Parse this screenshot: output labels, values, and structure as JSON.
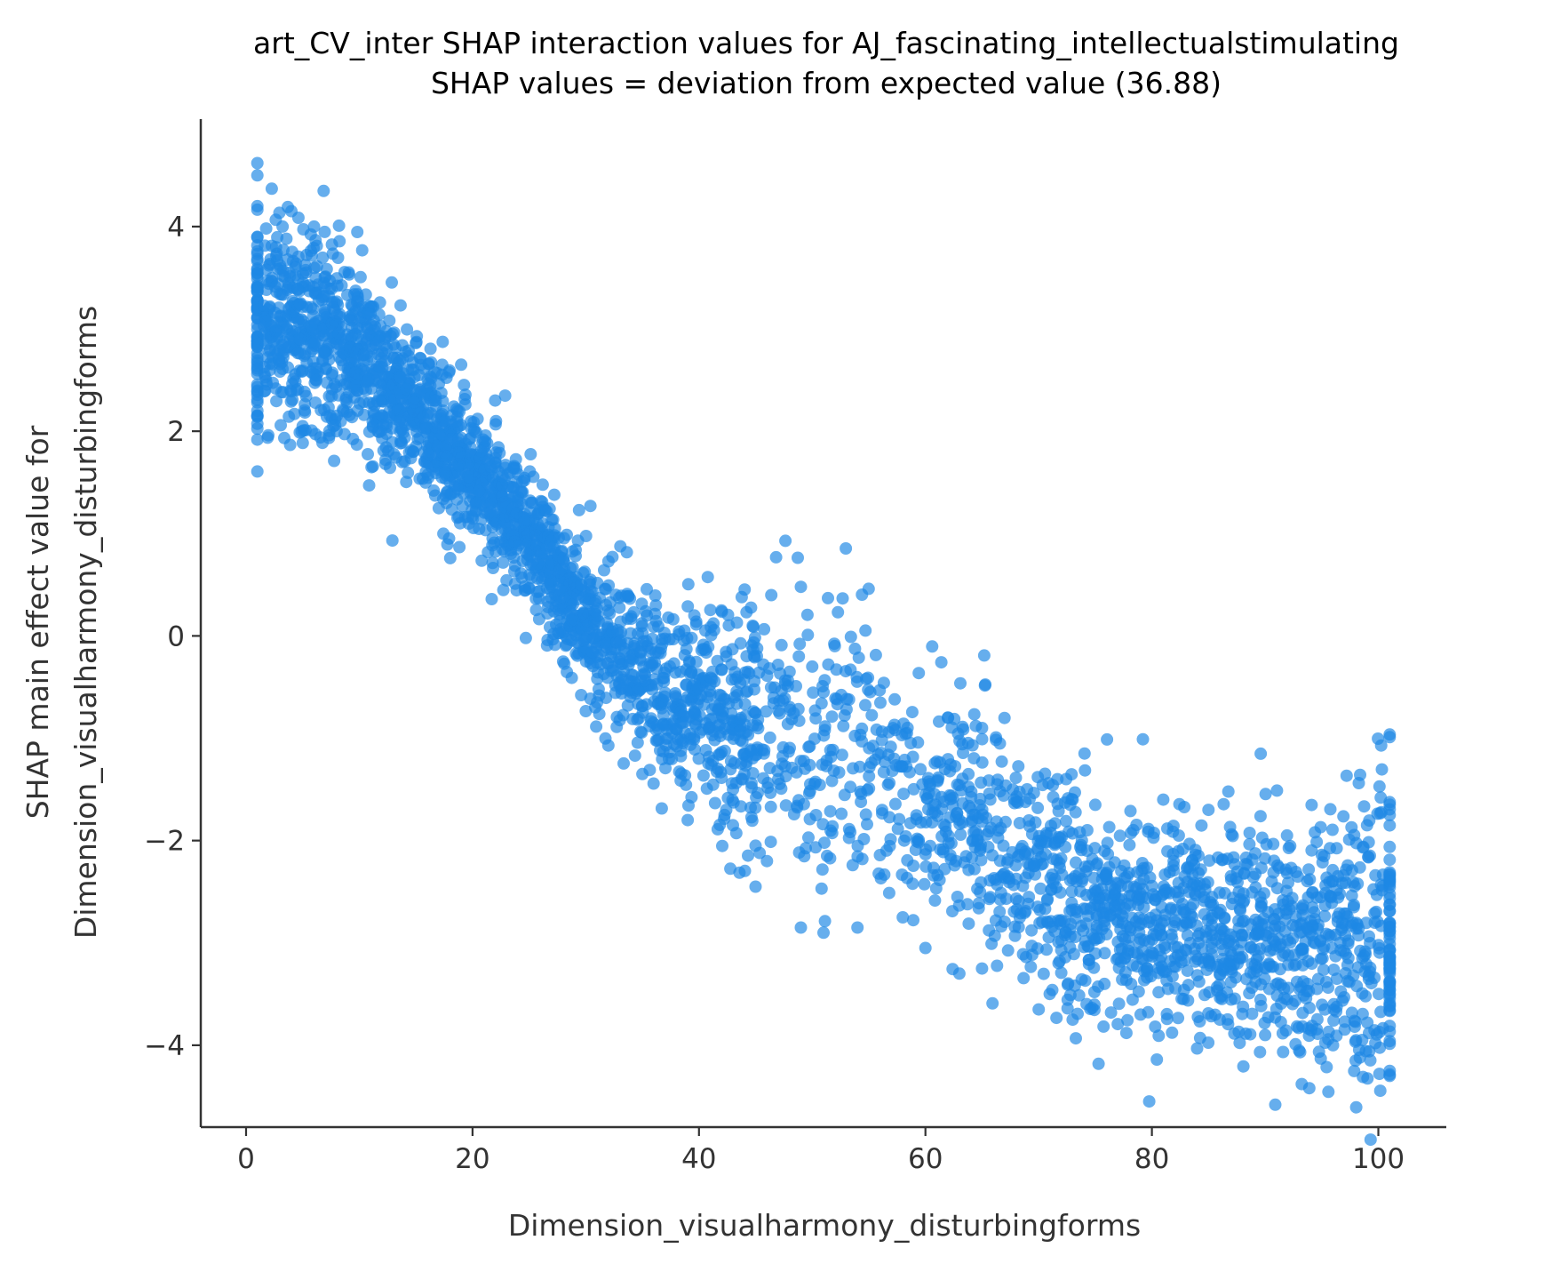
{
  "chart_data": {
    "type": "scatter",
    "title": "art_CV_inter SHAP interaction values for AJ_fascinating_intellectualstimulating",
    "subtitle": "SHAP values = deviation from expected value (36.88)",
    "xlabel": "Dimension_visualharmony_disturbingforms",
    "ylabel_line1": "SHAP main effect value for",
    "ylabel_line2": "Dimension_visualharmony_disturbingforms",
    "xlim": [
      -4,
      106
    ],
    "ylim": [
      -4.8,
      5.05
    ],
    "xticks": [
      0,
      20,
      40,
      60,
      80,
      100
    ],
    "yticks": [
      4,
      2,
      0,
      -2,
      -4
    ],
    "xtick_labels": [
      "0",
      "20",
      "40",
      "60",
      "80",
      "100"
    ],
    "ytick_labels": [
      "4",
      "2",
      "0",
      "−2",
      "−4"
    ],
    "grid": false,
    "legend": "none",
    "point_color": "#1e88e5",
    "trend": [
      {
        "x": 1,
        "y": 3.05
      },
      {
        "x": 5,
        "y": 3.0
      },
      {
        "x": 10,
        "y": 2.75
      },
      {
        "x": 15,
        "y": 2.2
      },
      {
        "x": 20,
        "y": 1.6
      },
      {
        "x": 25,
        "y": 1.0
      },
      {
        "x": 30,
        "y": 0.1
      },
      {
        "x": 35,
        "y": -0.45
      },
      {
        "x": 40,
        "y": -0.75
      },
      {
        "x": 45,
        "y": -0.9
      },
      {
        "x": 50,
        "y": -0.9
      },
      {
        "x": 55,
        "y": -1.2
      },
      {
        "x": 60,
        "y": -1.5
      },
      {
        "x": 65,
        "y": -1.9
      },
      {
        "x": 70,
        "y": -2.4
      },
      {
        "x": 75,
        "y": -2.7
      },
      {
        "x": 80,
        "y": -2.85
      },
      {
        "x": 85,
        "y": -2.9
      },
      {
        "x": 90,
        "y": -2.9
      },
      {
        "x": 95,
        "y": -2.95
      },
      {
        "x": 101,
        "y": -3.0
      }
    ],
    "spread": [
      {
        "x": 1,
        "s": 0.55
      },
      {
        "x": 10,
        "s": 0.4
      },
      {
        "x": 20,
        "s": 0.3
      },
      {
        "x": 30,
        "s": 0.35
      },
      {
        "x": 40,
        "s": 0.45
      },
      {
        "x": 50,
        "s": 0.8
      },
      {
        "x": 60,
        "s": 0.6
      },
      {
        "x": 70,
        "s": 0.55
      },
      {
        "x": 80,
        "s": 0.5
      },
      {
        "x": 90,
        "s": 0.55
      },
      {
        "x": 101,
        "s": 0.75
      }
    ],
    "points": [
      {
        "x": 1,
        "y": 4.62
      },
      {
        "x": 1,
        "y": 4.5
      },
      {
        "x": 1,
        "y": 4.2
      },
      {
        "x": 1,
        "y": 3.9
      },
      {
        "x": 1,
        "y": 2.2
      },
      {
        "x": 1,
        "y": 2.15
      },
      {
        "x": 4,
        "y": 4.15
      },
      {
        "x": 6,
        "y": 4.0
      },
      {
        "x": 5,
        "y": 2.05
      },
      {
        "x": 8,
        "y": 2.0
      },
      {
        "x": 19,
        "y": 2.65
      },
      {
        "x": 22,
        "y": 2.3
      },
      {
        "x": 45,
        "y": -2.05
      },
      {
        "x": 46,
        "y": -2.2
      },
      {
        "x": 45,
        "y": -2.45
      },
      {
        "x": 47,
        "y": -1.4
      },
      {
        "x": 49,
        "y": -2.85
      },
      {
        "x": 51,
        "y": -2.9
      },
      {
        "x": 52,
        "y": -0.1
      },
      {
        "x": 54,
        "y": -2.85
      },
      {
        "x": 58,
        "y": -2.75
      },
      {
        "x": 60,
        "y": -3.05
      },
      {
        "x": 62,
        "y": -0.8
      },
      {
        "x": 65,
        "y": -0.9
      },
      {
        "x": 63,
        "y": -3.3
      },
      {
        "x": 65,
        "y": -3.25
      },
      {
        "x": 70,
        "y": -3.65
      },
      {
        "x": 73,
        "y": -3.75
      },
      {
        "x": 79,
        "y": -3.7
      },
      {
        "x": 86,
        "y": -3.75
      },
      {
        "x": 90,
        "y": -3.9
      },
      {
        "x": 93,
        "y": -4.05
      },
      {
        "x": 96,
        "y": -4.0
      },
      {
        "x": 98,
        "y": -4.15
      },
      {
        "x": 101,
        "y": -4.3
      },
      {
        "x": 101,
        "y": -4.25
      },
      {
        "x": 99,
        "y": -1.85
      },
      {
        "x": 101,
        "y": -1.75
      },
      {
        "x": 85,
        "y": -1.7
      },
      {
        "x": 81,
        "y": -1.6
      },
      {
        "x": 75,
        "y": -1.65
      },
      {
        "x": 73,
        "y": -1.6
      },
      {
        "x": 28,
        "y": -0.25
      },
      {
        "x": 31,
        "y": -0.65
      },
      {
        "x": 35,
        "y": -1.35
      },
      {
        "x": 39,
        "y": -1.8
      },
      {
        "x": 43,
        "y": -1.85
      },
      {
        "x": 51,
        "y": -0.55
      },
      {
        "x": 50,
        "y": -0.3
      },
      {
        "x": 48,
        "y": -0.35
      }
    ]
  }
}
